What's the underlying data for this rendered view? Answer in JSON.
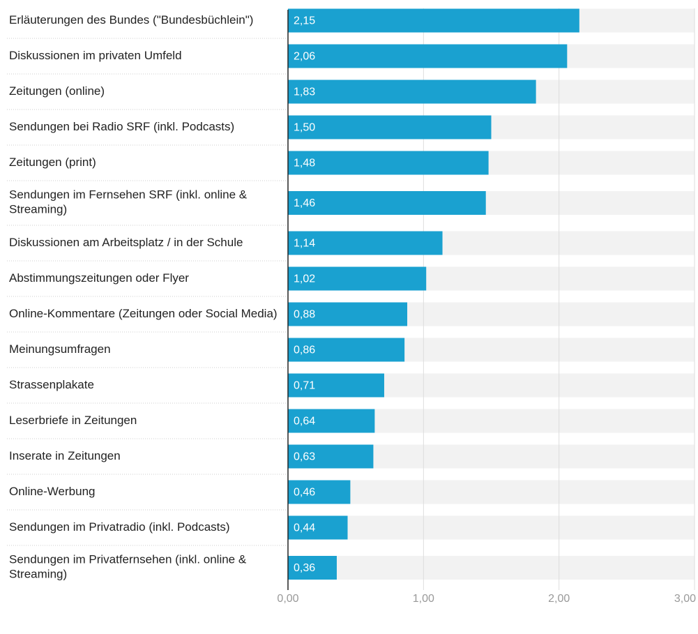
{
  "chart_data": {
    "type": "bar",
    "orientation": "horizontal",
    "categories": [
      "Erläuterungen des Bundes (\"Bundesbüchlein\")",
      "Diskussionen im privaten Umfeld",
      "Zeitungen (online)",
      "Sendungen bei Radio SRF (inkl. Podcasts)",
      "Zeitungen (print)",
      "Sendungen im Fernsehen SRF (inkl. online & Streaming)",
      "Diskussionen am Arbeitsplatz / in der Schule",
      "Abstimmungszeitungen oder Flyer",
      "Online-Kommentare (Zeitungen oder Social Media)",
      "Meinungsumfragen",
      "Strassenplakate",
      "Leserbriefe in Zeitungen",
      "Inserate in Zeitungen",
      "Online-Werbung",
      "Sendungen im Privatradio (inkl. Podcasts)",
      "Sendungen im Privatfernsehen (inkl. online & Streaming)"
    ],
    "values": [
      2.15,
      2.06,
      1.83,
      1.5,
      1.48,
      1.46,
      1.14,
      1.02,
      0.88,
      0.86,
      0.71,
      0.64,
      0.63,
      0.46,
      0.44,
      0.36
    ],
    "value_labels": [
      "2,15",
      "2,06",
      "1,83",
      "1,50",
      "1,48",
      "1,46",
      "1,14",
      "1,02",
      "0,88",
      "0,86",
      "0,71",
      "0,64",
      "0,63",
      "0,46",
      "0,44",
      "0,36"
    ],
    "color": "#1aa1d0",
    "xlim": [
      0,
      3
    ],
    "xticks": [
      {
        "value": 0,
        "label": "0,00"
      },
      {
        "value": 1,
        "label": "1,00"
      },
      {
        "value": 2,
        "label": "2,00"
      },
      {
        "value": 3,
        "label": "3,00"
      }
    ],
    "grid": true
  }
}
